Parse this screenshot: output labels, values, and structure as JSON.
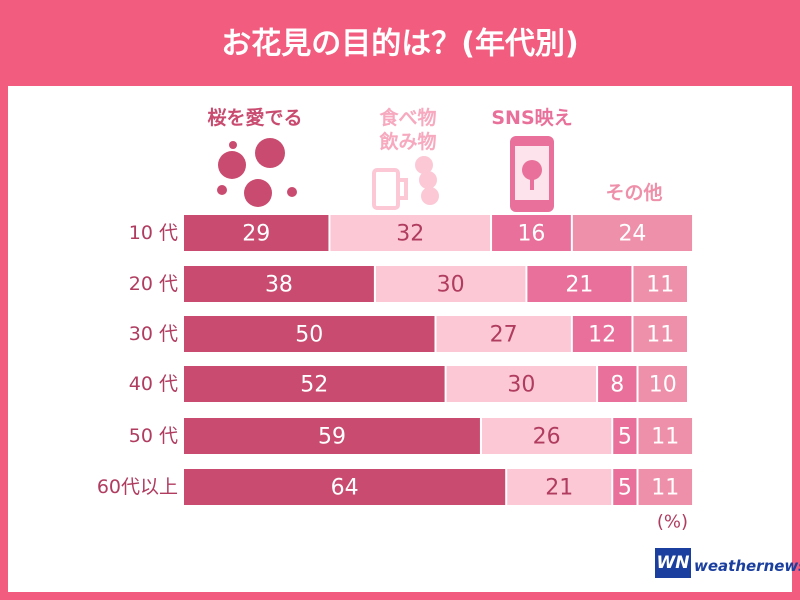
{
  "chart_data": {
    "type": "stacked-bar-horizontal",
    "title": "お花見の目的は？(年代別)",
    "categories": [
      "10 代",
      "20 代",
      "30 代",
      "40 代",
      "50 代",
      "60代以上"
    ],
    "series": [
      {
        "name": "桜を愛でる",
        "color": "#c94c70",
        "values": [
          29,
          38,
          50,
          52,
          59,
          64
        ]
      },
      {
        "name": "食べ物\n飲み物",
        "color": "#fcc8d6",
        "values": [
          32,
          30,
          27,
          30,
          26,
          21
        ]
      },
      {
        "name": "SNS映え",
        "color": "#e9709a",
        "values": [
          16,
          21,
          12,
          8,
          5,
          5
        ]
      },
      {
        "name": "その他",
        "color": "#ef90aa",
        "values": [
          24,
          11,
          11,
          10,
          11,
          11
        ]
      }
    ],
    "unit_label": "(%)",
    "logo": "WN",
    "source": "weathernews"
  }
}
